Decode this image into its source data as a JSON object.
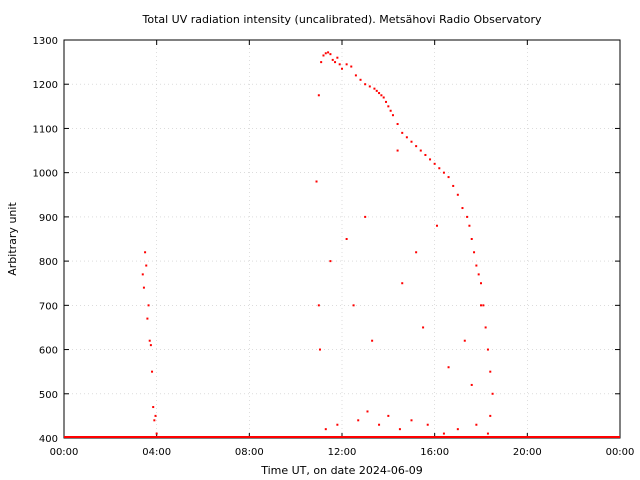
{
  "chart_data": {
    "type": "scatter",
    "title": "Total UV radiation intensity (uncalibrated). Metsähovi Radio Observatory",
    "xlabel": "Time UT, on date 2024-06-09",
    "ylabel": "Arbitrary unit",
    "xlim_hours": [
      0,
      24
    ],
    "ylim": [
      400,
      1300
    ],
    "x_ticks": [
      {
        "h": 0,
        "label": "00:00"
      },
      {
        "h": 4,
        "label": "04:00"
      },
      {
        "h": 8,
        "label": "08:00"
      },
      {
        "h": 12,
        "label": "12:00"
      },
      {
        "h": 16,
        "label": "16:00"
      },
      {
        "h": 20,
        "label": "20:00"
      },
      {
        "h": 24,
        "label": "00:00"
      }
    ],
    "y_ticks": [
      400,
      500,
      600,
      700,
      800,
      900,
      1000,
      1100,
      1200,
      1300
    ],
    "grid": true,
    "marker_color": "#ff0000",
    "series": [
      {
        "x_hours": [
          3.4,
          3.45,
          3.5,
          3.55,
          3.6,
          3.65,
          3.7,
          3.75,
          3.8,
          3.85,
          3.9,
          3.95,
          4.0,
          10.9,
          11.0,
          11.1,
          11.2,
          11.3,
          11.4,
          11.5,
          11.6,
          11.7,
          11.8,
          11.9,
          12.0,
          12.2,
          12.4,
          12.6,
          12.8,
          13.0,
          13.2,
          13.4,
          13.5,
          13.6,
          13.7,
          13.8,
          13.9,
          14.0,
          14.1,
          14.2,
          14.4,
          14.6,
          14.8,
          15.0,
          15.2,
          15.4,
          15.6,
          15.8,
          16.0,
          16.2,
          16.4,
          16.6,
          16.8,
          17.0,
          17.2,
          17.4,
          17.5,
          17.6,
          17.7,
          17.8,
          17.9,
          18.0,
          18.1,
          18.2,
          18.3,
          18.4,
          18.5,
          11.0,
          11.05,
          11.5,
          12.2,
          12.5,
          13.0,
          13.3,
          14.4,
          14.6,
          15.2,
          15.5,
          16.1,
          16.6,
          17.3,
          17.6,
          18.0,
          18.4,
          11.3,
          11.8,
          12.7,
          13.1,
          13.6,
          14.0,
          14.5,
          15.0,
          15.7,
          16.4,
          17.0,
          17.8,
          18.3
        ],
        "y": [
          770,
          740,
          820,
          790,
          670,
          700,
          620,
          610,
          550,
          470,
          440,
          450,
          410,
          980,
          1175,
          1250,
          1265,
          1270,
          1272,
          1268,
          1255,
          1250,
          1260,
          1245,
          1235,
          1245,
          1240,
          1220,
          1210,
          1200,
          1195,
          1190,
          1185,
          1180,
          1175,
          1170,
          1160,
          1150,
          1140,
          1130,
          1110,
          1090,
          1080,
          1070,
          1060,
          1050,
          1040,
          1030,
          1020,
          1010,
          1000,
          990,
          970,
          950,
          920,
          900,
          880,
          850,
          820,
          790,
          770,
          750,
          700,
          650,
          600,
          550,
          500,
          700,
          600,
          800,
          850,
          700,
          900,
          620,
          1050,
          750,
          820,
          650,
          880,
          560,
          620,
          520,
          700,
          450,
          420,
          430,
          440,
          460,
          430,
          450,
          420,
          440,
          430,
          410,
          420,
          430,
          410
        ]
      }
    ],
    "baseline_value": 400
  }
}
